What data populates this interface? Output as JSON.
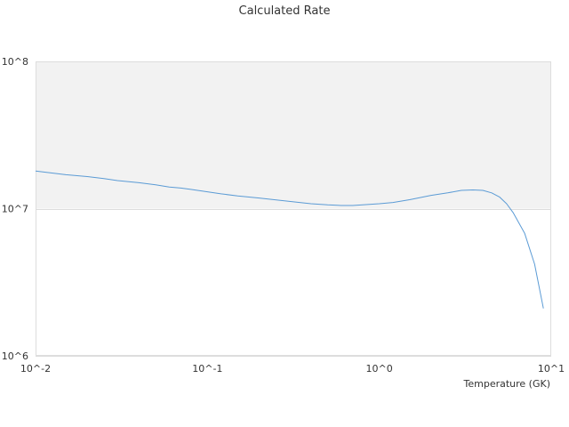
{
  "chart_data": {
    "type": "line",
    "title": "Calculated Rate",
    "xlabel": "Temperature (GK)",
    "ylabel": "",
    "x_scale": "log",
    "y_scale": "log",
    "xlim": [
      0.01,
      10
    ],
    "ylim": [
      1000000,
      100000000
    ],
    "x_tick_values": [
      0.01,
      0.1,
      1,
      10
    ],
    "x_tick_labels": [
      "10^-2",
      "10^-1",
      "10^0",
      "10^1"
    ],
    "y_tick_values": [
      1000000,
      10000000,
      100000000
    ],
    "y_tick_labels": [
      "10^6",
      "10^7",
      "10^8"
    ],
    "band": {
      "from": 10000000,
      "to": 100000000,
      "color": "#f2f2f2"
    },
    "grid": true,
    "legend": "none",
    "series": [
      {
        "color": "#5b9bd5",
        "x": [
          0.01,
          0.015,
          0.02,
          0.025,
          0.03,
          0.04,
          0.05,
          0.06,
          0.07,
          0.08,
          0.1,
          0.12,
          0.15,
          0.2,
          0.3,
          0.4,
          0.5,
          0.6,
          0.7,
          0.8,
          1.0,
          1.2,
          1.5,
          2.0,
          2.5,
          3.0,
          3.5,
          4.0,
          4.5,
          5.0,
          5.5,
          6.0,
          7.0,
          8.0,
          9.0
        ],
        "y": [
          18000000,
          17000000,
          16500000,
          16000000,
          15500000,
          15000000,
          14500000,
          14000000,
          13800000,
          13500000,
          13000000,
          12600000,
          12200000,
          11800000,
          11200000,
          10800000,
          10600000,
          10500000,
          10500000,
          10600000,
          10800000,
          11000000,
          11500000,
          12300000,
          12800000,
          13300000,
          13400000,
          13300000,
          12800000,
          12000000,
          10800000,
          9400000,
          6800000,
          4200000,
          2100000
        ]
      }
    ]
  }
}
